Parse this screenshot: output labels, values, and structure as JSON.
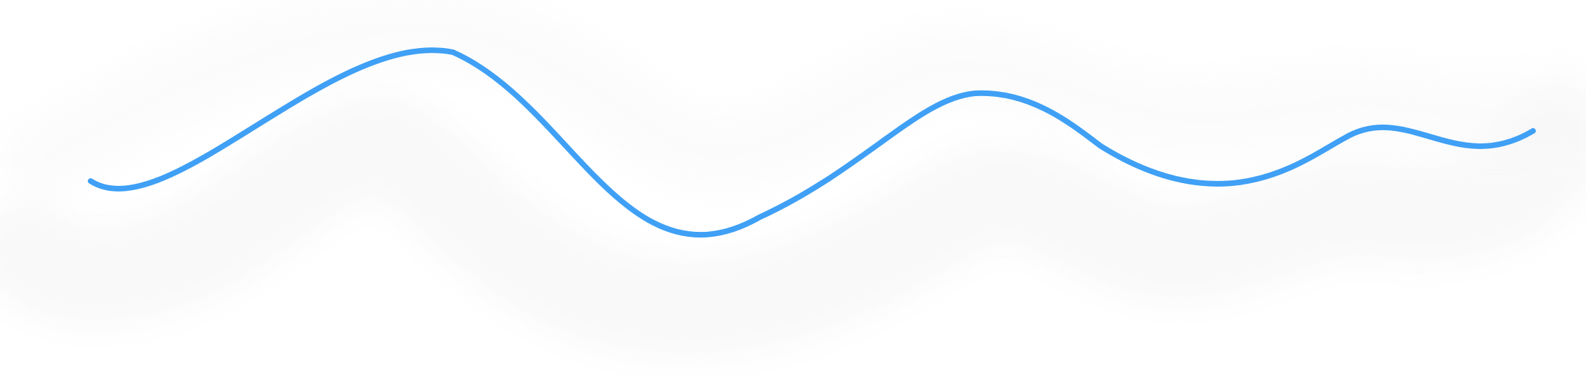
{
  "colors": {
    "background": "#ffffff",
    "ribbon": "#f7f7f7",
    "line": "#3fa0f5"
  }
}
